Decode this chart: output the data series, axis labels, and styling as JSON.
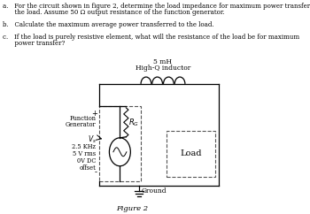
{
  "bg_color": "#ffffff",
  "text_color": "#000000",
  "line_color": "#000000",
  "inductor_label_line1": "5 mH",
  "inductor_label_line2": "High-Q inductor",
  "rg_label": "$R_G$",
  "fg_line1": "Function",
  "fg_line2": "Generator",
  "fg_vs": "$V_s$",
  "fg_line4": "2.5 KHz",
  "fg_line5": "5 V rms",
  "fg_line6": "0V DC",
  "fg_line7": "offset",
  "plus_label": "+",
  "minus_label": "-",
  "load_label": "Load",
  "ground_label": "Ground",
  "figure_label": "Figure 2",
  "text_a_1": "a.   For the circuit shown in figure 2, determine the load impedance for maximum power transfer to",
  "text_a_2": "      the load. Assume 50 Ω output resistance of the function generator.",
  "text_b": "b.   Calculate the maximum average power transferred to the load.",
  "text_c_1": "c.   If the load is purely resistive element, what will the resistance of the load be for maximum",
  "text_c_2": "      power transfer?"
}
